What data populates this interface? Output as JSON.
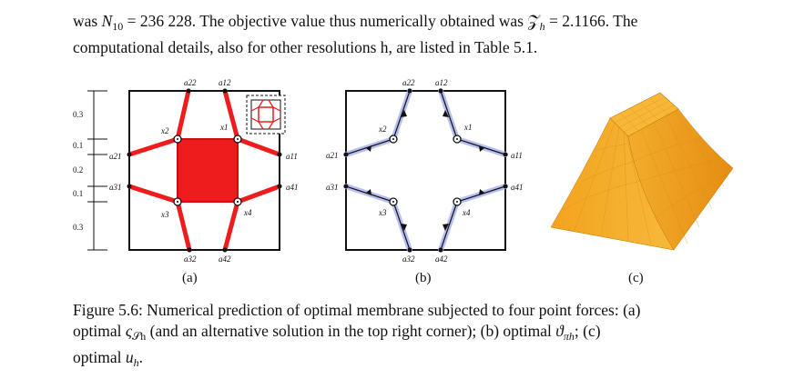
{
  "text_top": {
    "line1_a": "was ",
    "line1_N": "N",
    "line1_N_sub": "10",
    "line1_b": " = 236 228. The objective value thus numerically obtained was ",
    "line1_Z": "𝒵",
    "line1_Z_sub": "h",
    "line1_c": " = 2.1166. The",
    "line2": "computational details, also for other resolutions h, are listed in Table 5.1."
  },
  "figure": {
    "panel_a": {
      "label": "(a)",
      "dim_labels": [
        "0.3",
        "0.1",
        "0.2",
        "0.1",
        "0.3"
      ],
      "anchor_labels": {
        "a22": "a22",
        "a12": "a12",
        "a21": "a21",
        "a11": "a11",
        "a31": "a31",
        "a41": "a41",
        "a32": "a32",
        "a42": "a42"
      },
      "point_labels": {
        "x1": "x1",
        "x2": "x2",
        "x3": "x3",
        "x4": "x4"
      }
    },
    "panel_b": {
      "label": "(b)",
      "anchor_labels": {
        "a22": "a22",
        "a12": "a12",
        "a21": "a21",
        "a11": "a11",
        "a31": "a31",
        "a41": "a41",
        "a32": "a32",
        "a42": "a42"
      },
      "point_labels": {
        "x1": "x1",
        "x2": "x2",
        "x3": "x3",
        "x4": "x4"
      }
    },
    "panel_c": {
      "label": "(c)"
    },
    "colors": {
      "membrane_red": "#ee1c1c",
      "force_blue": "#b8bff0",
      "surface_top": "#f5b12c",
      "surface_side": "#eea21f"
    }
  },
  "caption": {
    "line1": "Figure 5.6: Numerical prediction of optimal membrane subjected to four point forces: (a)",
    "line2_a": "optimal ",
    "line2_sym": "ς",
    "line2_sym_sub": "𝒮h",
    "line2_b": " (and an alternative solution in the top right corner); (b) optimal ",
    "line2_sym2": "ϑ",
    "line2_sym2_sub": "πh",
    "line2_c": "; (c)",
    "line3_a": "optimal ",
    "line3_u": "u",
    "line3_u_sub": "h",
    "line3_b": "."
  }
}
